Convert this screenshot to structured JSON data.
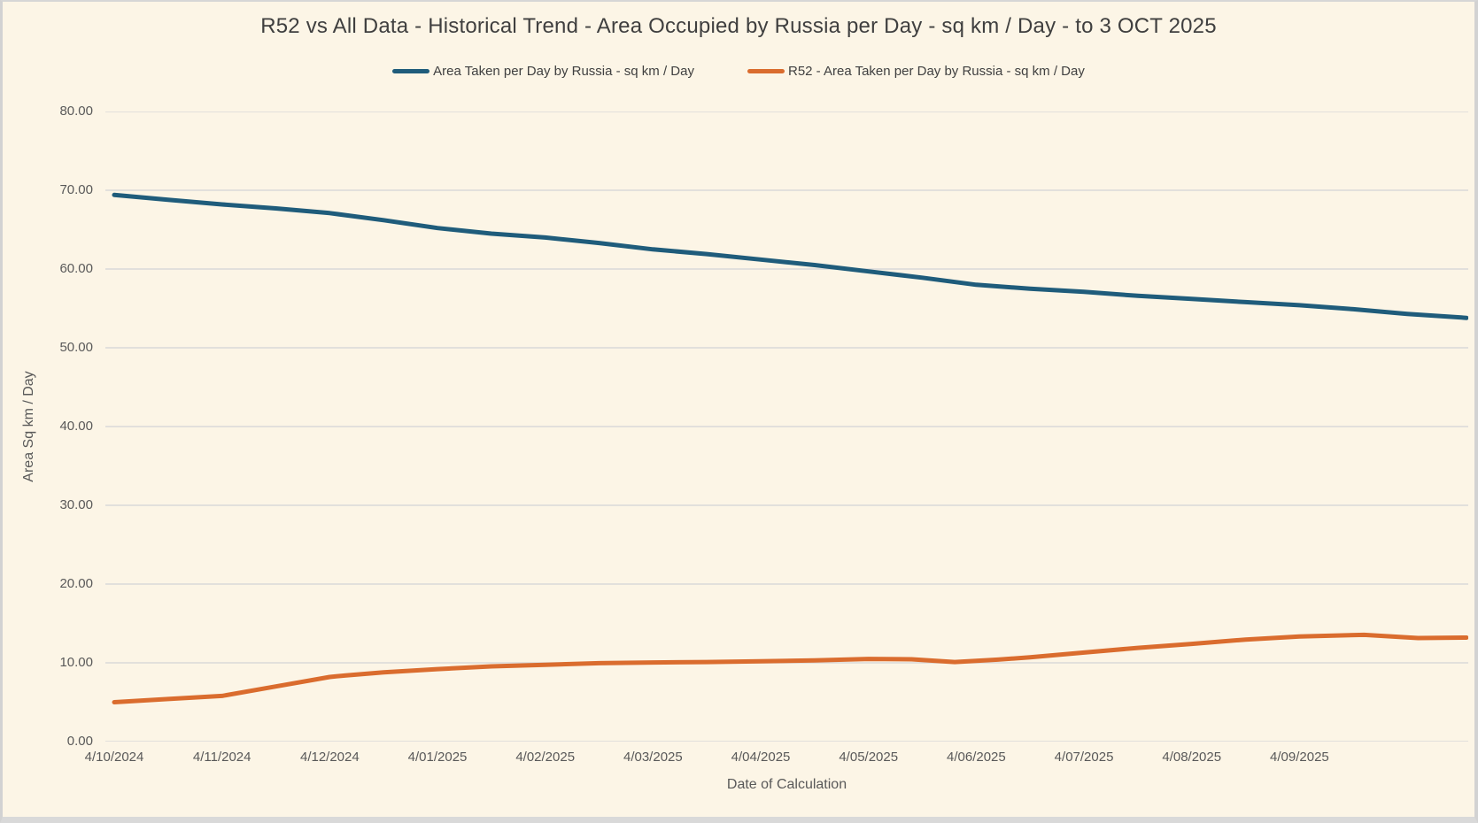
{
  "colors": {
    "background": "#FCF5E6",
    "frame_border": "#D2D2D2",
    "gridline": "#D9D9D9",
    "title_text": "#3F3F3F",
    "axis_text": "#595959",
    "legend_text": "#404040",
    "series_all_data": "#1F5C7B",
    "series_r52": "#DA6C2E"
  },
  "chart_data": {
    "type": "line",
    "title": "R52 vs All Data - Historical Trend - Area Occupied by Russia per Day - sq km / Day - to 3 OCT 2025",
    "xlabel": "Date of Calculation",
    "ylabel": "Area Sq km / Day",
    "ylim": [
      0,
      80
    ],
    "y_tick_step": 10,
    "y_tick_labels": [
      "0.00",
      "10.00",
      "20.00",
      "30.00",
      "40.00",
      "50.00",
      "60.00",
      "70.00",
      "80.00"
    ],
    "x_tick_labels": [
      "4/10/2024",
      "4/11/2024",
      "4/12/2024",
      "4/01/2025",
      "4/02/2025",
      "4/03/2025",
      "4/04/2025",
      "4/05/2025",
      "4/06/2025",
      "4/07/2025",
      "4/08/2025",
      "4/09/2025"
    ],
    "x_axis_note": "x unit = months after 4/10/2024; data runs to 3 OCT 2025",
    "x_range_months": [
      0,
      12.55
    ],
    "grid": "horizontal",
    "legend_position": "top-center",
    "series": [
      {
        "name": "Area Taken per Day by Russia - sq km / Day",
        "color_key": "series_all_data",
        "points": [
          [
            0,
            69.4
          ],
          [
            0.5,
            68.8
          ],
          [
            1,
            68.2
          ],
          [
            1.5,
            67.7
          ],
          [
            2,
            67.1
          ],
          [
            2.5,
            66.2
          ],
          [
            3,
            65.2
          ],
          [
            3.5,
            64.5
          ],
          [
            4,
            64.0
          ],
          [
            4.5,
            63.3
          ],
          [
            5,
            62.5
          ],
          [
            5.5,
            61.9
          ],
          [
            6,
            61.2
          ],
          [
            6.5,
            60.5
          ],
          [
            7,
            59.7
          ],
          [
            7.5,
            58.9
          ],
          [
            8,
            58.0
          ],
          [
            8.5,
            57.5
          ],
          [
            9,
            57.1
          ],
          [
            9.5,
            56.6
          ],
          [
            10,
            56.2
          ],
          [
            10.5,
            55.8
          ],
          [
            11,
            55.4
          ],
          [
            11.5,
            54.9
          ],
          [
            12,
            54.3
          ],
          [
            12.55,
            53.8
          ]
        ]
      },
      {
        "name": "R52 - Area Taken per Day by Russia - sq km / Day",
        "color_key": "series_r52",
        "points": [
          [
            0,
            5.0
          ],
          [
            0.5,
            5.4
          ],
          [
            1,
            5.8
          ],
          [
            1.5,
            7.0
          ],
          [
            2,
            8.2
          ],
          [
            2.15,
            8.4
          ],
          [
            2.5,
            8.8
          ],
          [
            3,
            9.2
          ],
          [
            3.5,
            9.55
          ],
          [
            4,
            9.75
          ],
          [
            4.5,
            9.95
          ],
          [
            5,
            10.05
          ],
          [
            5.5,
            10.1
          ],
          [
            6,
            10.2
          ],
          [
            6.5,
            10.3
          ],
          [
            7,
            10.5
          ],
          [
            7.4,
            10.45
          ],
          [
            7.8,
            10.1
          ],
          [
            8.2,
            10.4
          ],
          [
            8.5,
            10.7
          ],
          [
            9,
            11.3
          ],
          [
            9.5,
            11.9
          ],
          [
            10,
            12.4
          ],
          [
            10.5,
            12.95
          ],
          [
            11,
            13.35
          ],
          [
            11.6,
            13.55
          ],
          [
            12.1,
            13.15
          ],
          [
            12.55,
            13.2
          ]
        ]
      }
    ]
  }
}
